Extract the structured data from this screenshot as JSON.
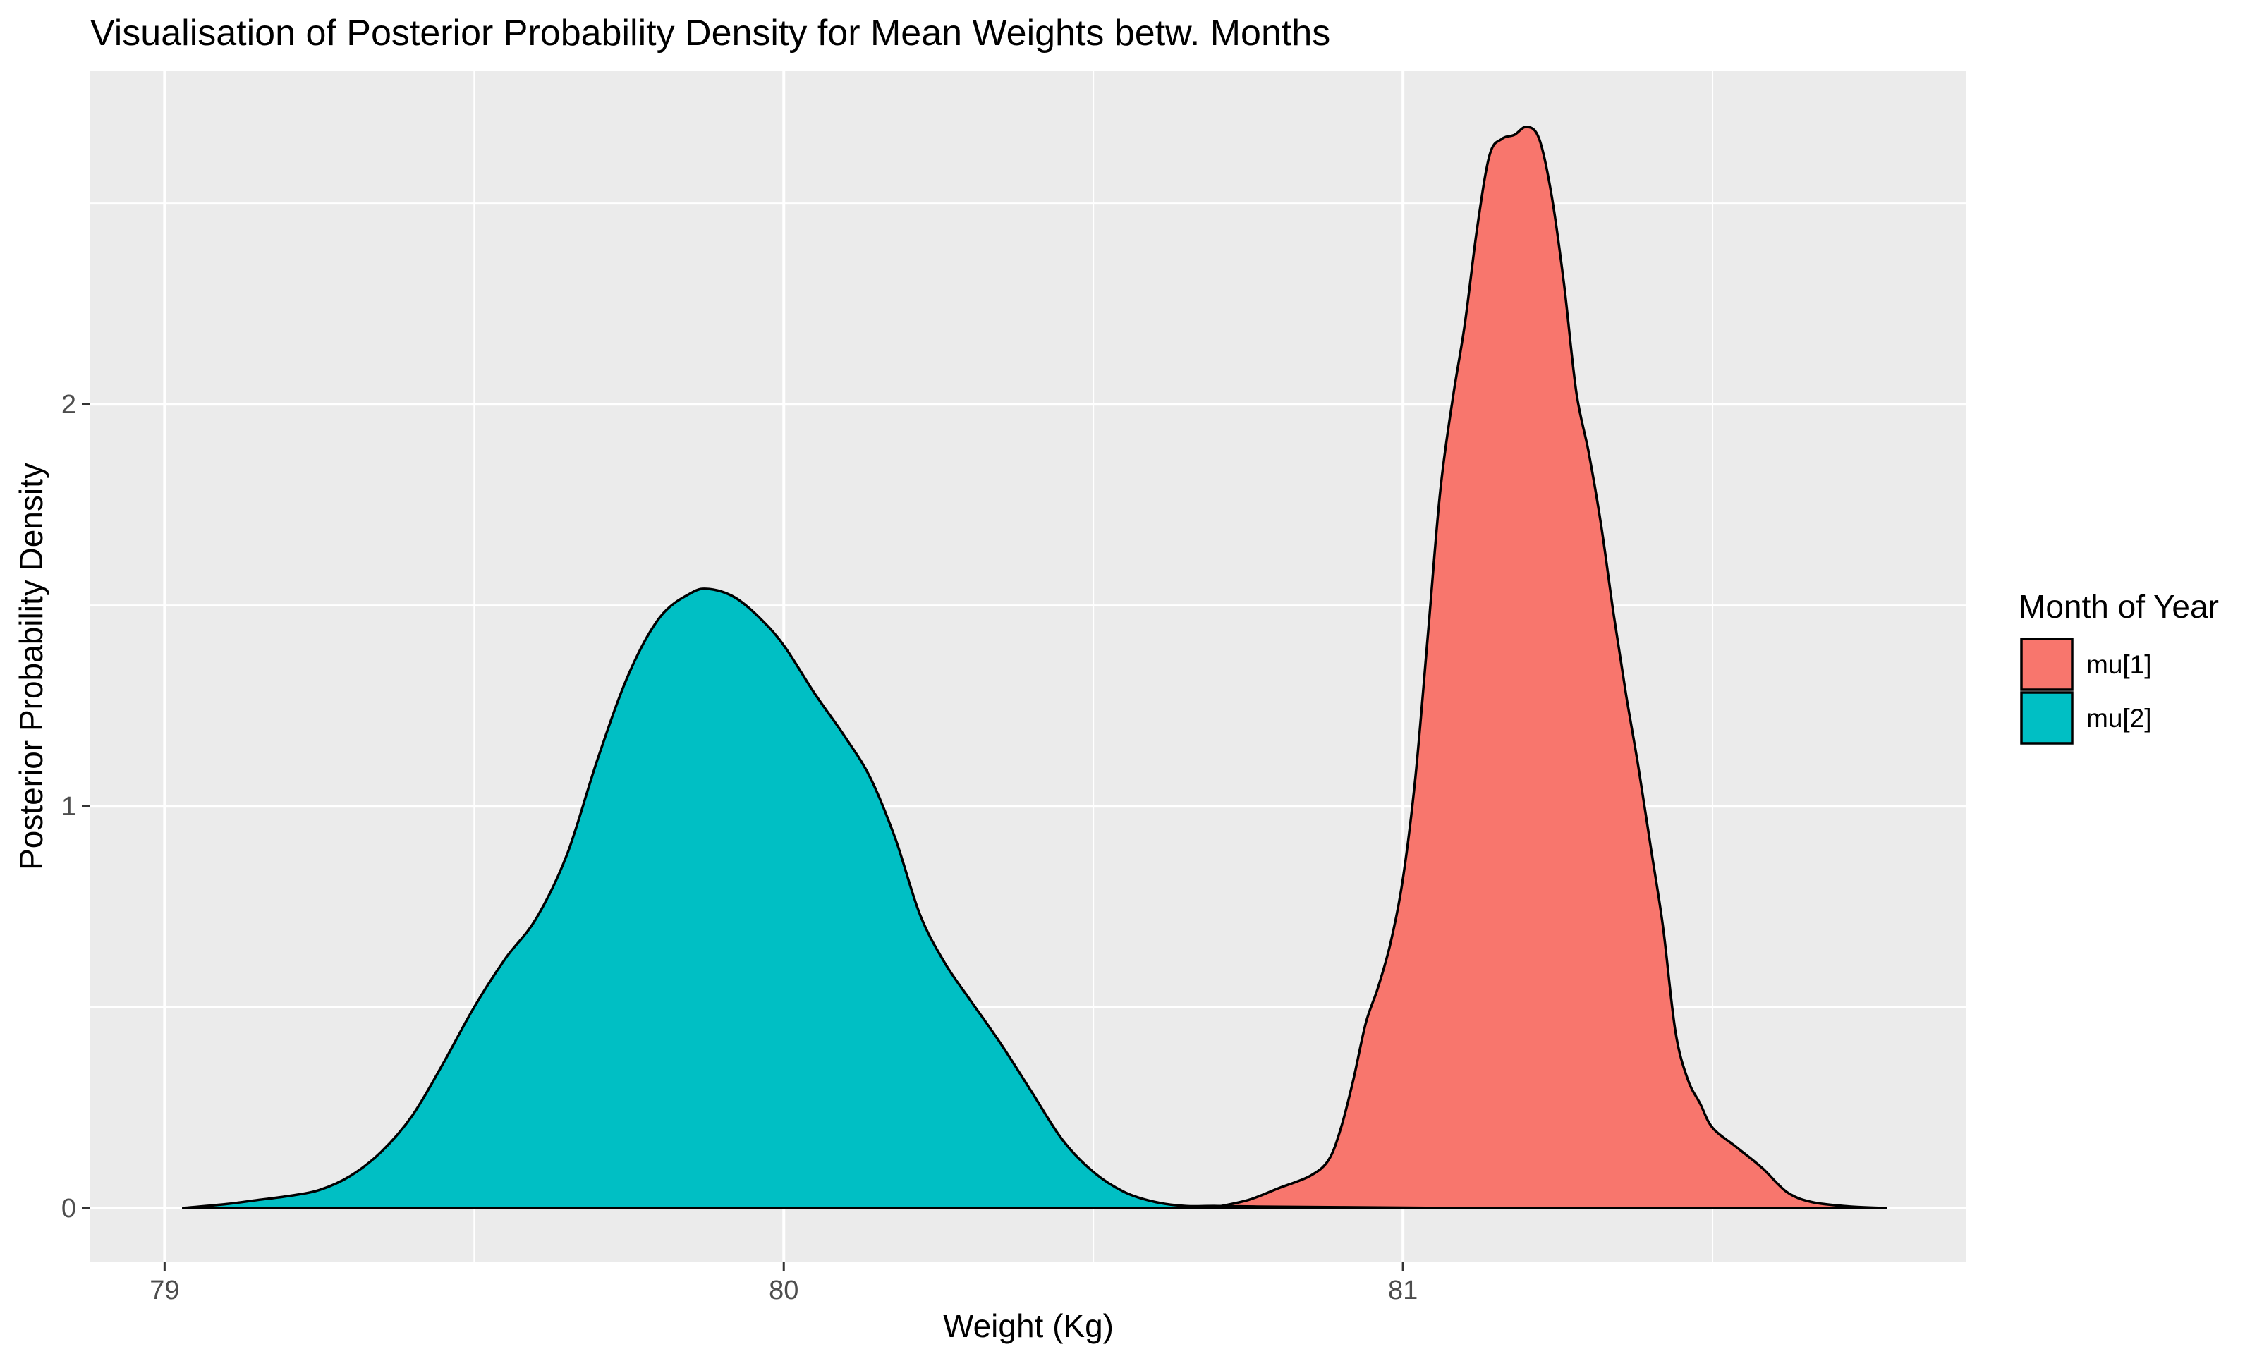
{
  "chart_data": {
    "type": "area",
    "title": "Visualisation of Posterior Probability Density for Mean Weights betw. Months",
    "xlabel": "Weight (Kg)",
    "ylabel": "Posterior Probability Density",
    "xlim": [
      78.88,
      81.91
    ],
    "ylim": [
      -0.135,
      2.83
    ],
    "x_ticks": [
      79,
      80,
      81
    ],
    "x_tick_labels": [
      "79",
      "80",
      "81"
    ],
    "x_minor_ticks": [
      79.5,
      80.5,
      81.5
    ],
    "y_ticks": [
      0,
      1,
      2
    ],
    "y_tick_labels": [
      "0",
      "1",
      "2"
    ],
    "y_minor_ticks": [
      0.5,
      1.5,
      2.5
    ],
    "grid": true,
    "legend": {
      "title": "Month of Year",
      "position": "right"
    },
    "colors": {
      "panel_background": "#ebebeb",
      "grid": "#ffffff",
      "outline": "#000000"
    },
    "series": [
      {
        "name": "mu[1]",
        "color": "#f8766d",
        "points": [
          [
            80.69,
            0.0
          ],
          [
            80.75,
            0.02
          ],
          [
            80.8,
            0.05
          ],
          [
            80.85,
            0.08
          ],
          [
            80.88,
            0.12
          ],
          [
            80.9,
            0.2
          ],
          [
            80.92,
            0.32
          ],
          [
            80.94,
            0.46
          ],
          [
            80.96,
            0.55
          ],
          [
            80.98,
            0.66
          ],
          [
            81.0,
            0.82
          ],
          [
            81.02,
            1.07
          ],
          [
            81.04,
            1.42
          ],
          [
            81.06,
            1.78
          ],
          [
            81.08,
            2.01
          ],
          [
            81.1,
            2.2
          ],
          [
            81.12,
            2.44
          ],
          [
            81.14,
            2.62
          ],
          [
            81.16,
            2.66
          ],
          [
            81.18,
            2.67
          ],
          [
            81.2,
            2.69
          ],
          [
            81.22,
            2.66
          ],
          [
            81.24,
            2.52
          ],
          [
            81.26,
            2.3
          ],
          [
            81.28,
            2.03
          ],
          [
            81.3,
            1.88
          ],
          [
            81.32,
            1.7
          ],
          [
            81.34,
            1.48
          ],
          [
            81.36,
            1.28
          ],
          [
            81.38,
            1.1
          ],
          [
            81.4,
            0.9
          ],
          [
            81.42,
            0.7
          ],
          [
            81.44,
            0.44
          ],
          [
            81.46,
            0.32
          ],
          [
            81.48,
            0.26
          ],
          [
            81.5,
            0.2
          ],
          [
            81.54,
            0.15
          ],
          [
            81.58,
            0.1
          ],
          [
            81.62,
            0.04
          ],
          [
            81.66,
            0.015
          ],
          [
            81.72,
            0.004
          ],
          [
            81.78,
            0.0
          ]
        ]
      },
      {
        "name": "mu[2]",
        "color": "#00bfc4",
        "points": [
          [
            79.03,
            0.0
          ],
          [
            79.1,
            0.01
          ],
          [
            79.15,
            0.02
          ],
          [
            79.2,
            0.03
          ],
          [
            79.25,
            0.045
          ],
          [
            79.3,
            0.08
          ],
          [
            79.35,
            0.14
          ],
          [
            79.4,
            0.23
          ],
          [
            79.45,
            0.36
          ],
          [
            79.5,
            0.5
          ],
          [
            79.55,
            0.62
          ],
          [
            79.6,
            0.72
          ],
          [
            79.65,
            0.88
          ],
          [
            79.7,
            1.12
          ],
          [
            79.75,
            1.33
          ],
          [
            79.8,
            1.47
          ],
          [
            79.85,
            1.53
          ],
          [
            79.88,
            1.54
          ],
          [
            79.92,
            1.52
          ],
          [
            79.96,
            1.47
          ],
          [
            80.0,
            1.4
          ],
          [
            80.05,
            1.28
          ],
          [
            80.1,
            1.17
          ],
          [
            80.14,
            1.07
          ],
          [
            80.18,
            0.92
          ],
          [
            80.22,
            0.73
          ],
          [
            80.26,
            0.61
          ],
          [
            80.3,
            0.52
          ],
          [
            80.35,
            0.41
          ],
          [
            80.4,
            0.29
          ],
          [
            80.45,
            0.17
          ],
          [
            80.5,
            0.09
          ],
          [
            80.55,
            0.04
          ],
          [
            80.6,
            0.015
          ],
          [
            80.65,
            0.005
          ],
          [
            80.7,
            0.005
          ],
          [
            80.8,
            0.003
          ],
          [
            80.9,
            0.002
          ],
          [
            81.0,
            0.001
          ],
          [
            81.1,
            0.0
          ]
        ]
      }
    ]
  }
}
